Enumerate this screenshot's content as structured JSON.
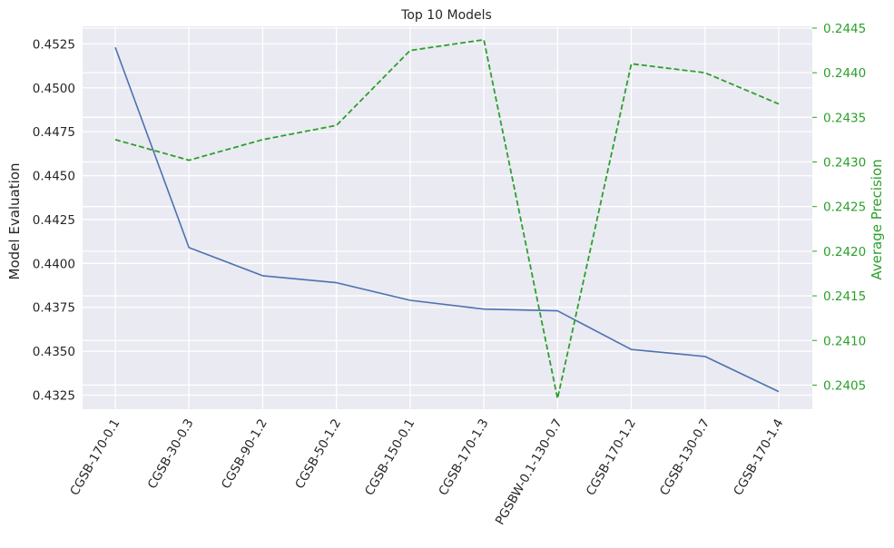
{
  "chart_data": {
    "type": "line",
    "title": "Top 10 Models",
    "xlabel": "",
    "categories": [
      "CGSB-170-0.1",
      "CGSB-30-0.3",
      "CGSB-90-1.2",
      "CGSB-50-1.2",
      "CGSB-150-0.1",
      "CGSB-170-1.3",
      "PGSBW-0.1-130-0.7",
      "CGSB-170-1.2",
      "CGSB-130-0.7",
      "CGSB-170-1.4"
    ],
    "left_axis": {
      "label": "Model Evaluation",
      "ylim": [
        0.4317,
        0.4535
      ],
      "ticks": [
        "0.4325",
        "0.4350",
        "0.4375",
        "0.4400",
        "0.4425",
        "0.4450",
        "0.4475",
        "0.4500",
        "0.4525"
      ],
      "color": "#262626"
    },
    "right_axis": {
      "label": "Average Precision",
      "ylim": [
        0.24023,
        0.24452
      ],
      "ticks": [
        "0.2405",
        "0.2410",
        "0.2415",
        "0.2420",
        "0.2425",
        "0.2430",
        "0.2435",
        "0.2440",
        "0.2445"
      ],
      "color": "#2ca02c"
    },
    "series": [
      {
        "axis": "left",
        "style": "solid",
        "color": "#4c72b0",
        "values": [
          0.4523,
          0.4409,
          0.4393,
          0.4389,
          0.4379,
          0.4374,
          0.4373,
          0.4351,
          0.4347,
          0.4327
        ]
      },
      {
        "axis": "right",
        "style": "dashed",
        "color": "#2ca02c",
        "values": [
          0.24325,
          0.24302,
          0.24325,
          0.24341,
          0.24425,
          0.24437,
          0.24035,
          0.2441,
          0.244,
          0.24365
        ]
      }
    ],
    "grid": true,
    "legend": "none"
  }
}
